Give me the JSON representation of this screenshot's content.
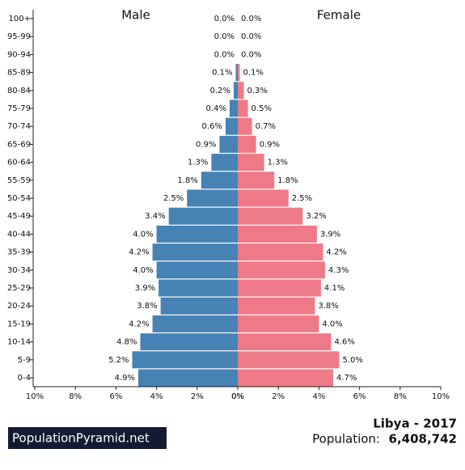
{
  "chart_data": {
    "type": "pyramid",
    "title": "Libya - 2017",
    "population_label": "Population:",
    "population": "6,408,742",
    "brand": "PopulationPyramid.net",
    "categories": [
      "100+",
      "95-99",
      "90-94",
      "85-89",
      "80-84",
      "75-79",
      "70-74",
      "65-69",
      "60-64",
      "55-59",
      "50-54",
      "45-49",
      "40-44",
      "35-39",
      "30-34",
      "25-29",
      "20-24",
      "15-19",
      "10-14",
      "5-9",
      "0-4"
    ],
    "series": [
      {
        "name": "Male",
        "color": "#4682b4",
        "values": [
          0.0,
          0.0,
          0.0,
          0.1,
          0.2,
          0.4,
          0.6,
          0.9,
          1.3,
          1.8,
          2.5,
          3.4,
          4.0,
          4.2,
          4.0,
          3.9,
          3.8,
          4.2,
          4.8,
          5.2,
          4.9
        ],
        "value_labels": [
          "0.0%",
          "0.0%",
          "0.0%",
          "0.1%",
          "0.2%",
          "0.4%",
          "0.6%",
          "0.9%",
          "1.3%",
          "1.8%",
          "2.5%",
          "3.4%",
          "4.0%",
          "4.2%",
          "4.0%",
          "3.9%",
          "3.8%",
          "4.2%",
          "4.8%",
          "5.2%",
          "4.9%"
        ]
      },
      {
        "name": "Female",
        "color": "#ef7a87",
        "values": [
          0.0,
          0.0,
          0.0,
          0.1,
          0.3,
          0.5,
          0.7,
          0.9,
          1.3,
          1.8,
          2.5,
          3.2,
          3.9,
          4.2,
          4.3,
          4.1,
          3.8,
          4.0,
          4.6,
          5.0,
          4.7
        ],
        "value_labels": [
          "0.0%",
          "0.0%",
          "0.0%",
          "0.1%",
          "0.3%",
          "0.5%",
          "0.7%",
          "0.9%",
          "1.3%",
          "1.8%",
          "2.5%",
          "3.2%",
          "3.9%",
          "4.2%",
          "4.3%",
          "4.1%",
          "3.8%",
          "4.0%",
          "4.6%",
          "5.0%",
          "4.7%"
        ]
      }
    ],
    "xlim": [
      0,
      10
    ],
    "xticks": [
      {
        "value": 0,
        "label": "0%"
      },
      {
        "value": 2,
        "label": "2%"
      },
      {
        "value": 4,
        "label": "4%"
      },
      {
        "value": 6,
        "label": "6%"
      },
      {
        "value": 8,
        "label": "8%"
      },
      {
        "value": 10,
        "label": "10%"
      }
    ]
  }
}
